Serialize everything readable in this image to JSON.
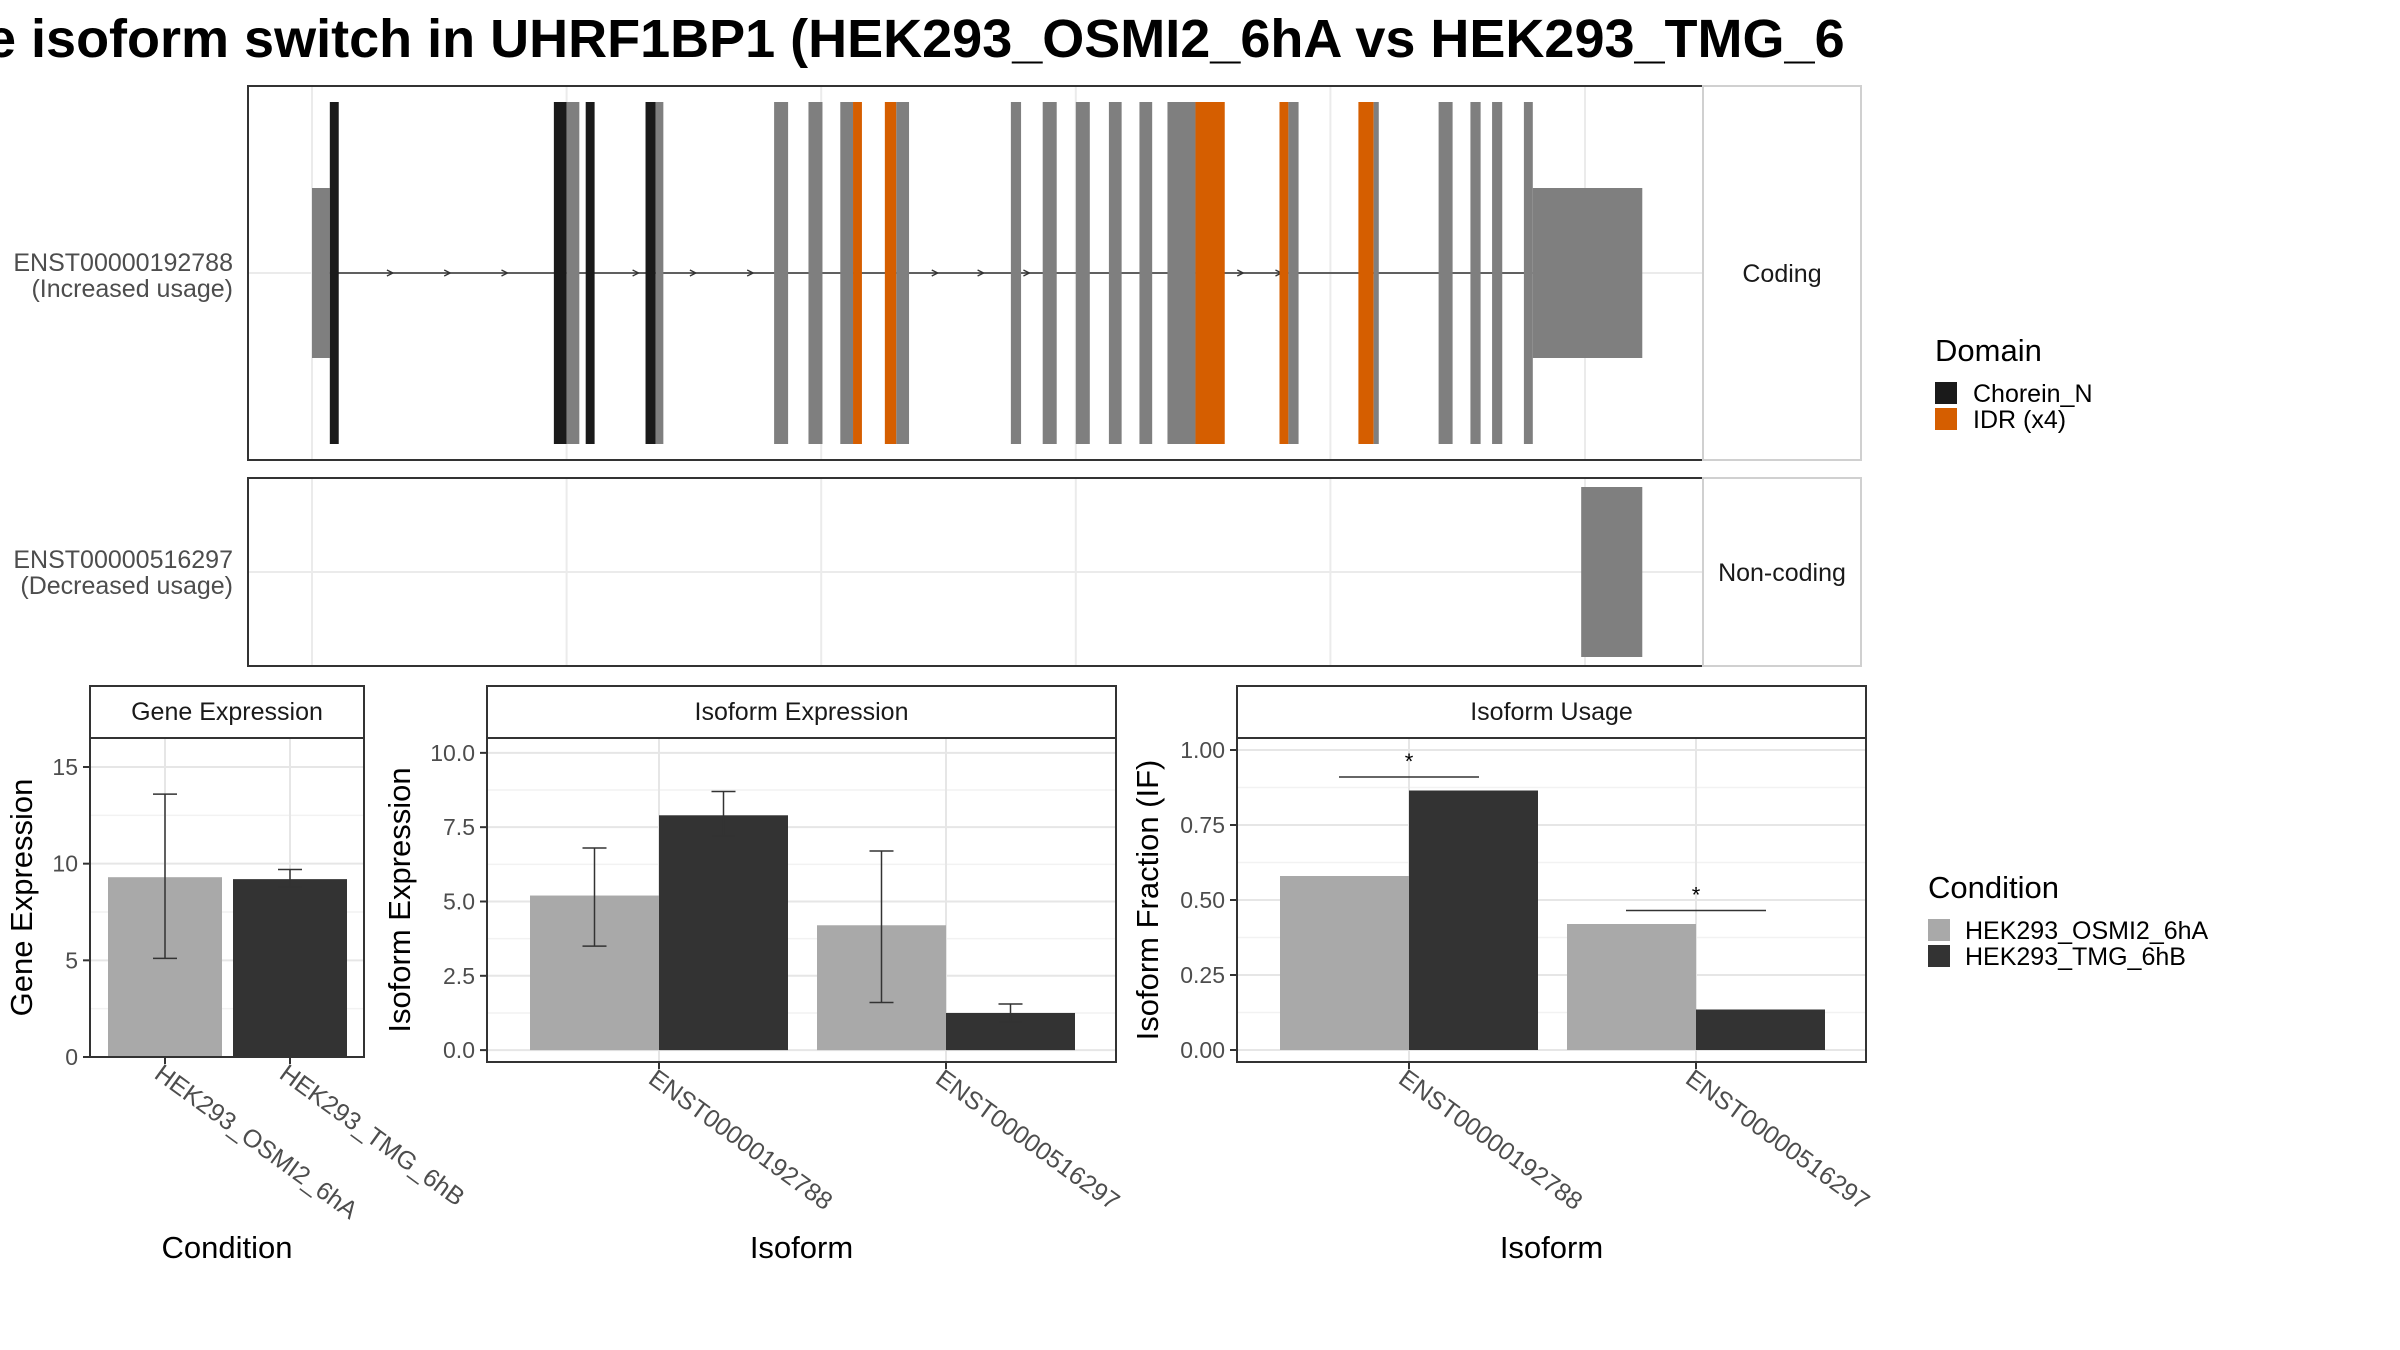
{
  "title": "e isoform switch in UHRF1BP1 (HEK293_OSMI2_6hA vs HEK293_TMG_6",
  "colors": {
    "chorein": "#1a1a1a",
    "idr": "#d55e00",
    "exon": "#7f7f7f",
    "cond_a": "#a9a9a9",
    "cond_b": "#333333"
  },
  "chart_data": [
    {
      "type": "gene-structure",
      "panels": [
        {
          "name": "ENST00000192788\n(Increased usage)",
          "label_line1": "ENST00000192788",
          "label_line2": "(Increased usage)",
          "strip": "Coding",
          "coding": true,
          "exons": [
            {
              "start": 0.0,
              "end": 0.014,
              "kind": "utr"
            },
            {
              "start": 0.014,
              "end": 0.021,
              "kind": "cds",
              "domain": "Chorein_N"
            },
            {
              "start": 0.19,
              "end": 0.2,
              "kind": "cds",
              "domain": "Chorein_N"
            },
            {
              "start": 0.2,
              "end": 0.21,
              "kind": "cds"
            },
            {
              "start": 0.215,
              "end": 0.222,
              "kind": "cds",
              "domain": "Chorein_N"
            },
            {
              "start": 0.262,
              "end": 0.27,
              "kind": "cds",
              "domain": "Chorein_N"
            },
            {
              "start": 0.27,
              "end": 0.276,
              "kind": "cds"
            },
            {
              "start": 0.363,
              "end": 0.374,
              "kind": "cds"
            },
            {
              "start": 0.39,
              "end": 0.401,
              "kind": "cds"
            },
            {
              "start": 0.415,
              "end": 0.425,
              "kind": "cds"
            },
            {
              "start": 0.425,
              "end": 0.432,
              "kind": "cds",
              "domain": "IDR"
            },
            {
              "start": 0.45,
              "end": 0.459,
              "kind": "cds",
              "domain": "IDR"
            },
            {
              "start": 0.459,
              "end": 0.469,
              "kind": "cds"
            },
            {
              "start": 0.549,
              "end": 0.557,
              "kind": "cds"
            },
            {
              "start": 0.574,
              "end": 0.585,
              "kind": "cds"
            },
            {
              "start": 0.6,
              "end": 0.611,
              "kind": "cds"
            },
            {
              "start": 0.626,
              "end": 0.636,
              "kind": "cds"
            },
            {
              "start": 0.65,
              "end": 0.66,
              "kind": "cds"
            },
            {
              "start": 0.672,
              "end": 0.694,
              "kind": "cds"
            },
            {
              "start": 0.694,
              "end": 0.717,
              "kind": "cds",
              "domain": "IDR"
            },
            {
              "start": 0.76,
              "end": 0.767,
              "kind": "cds",
              "domain": "IDR"
            },
            {
              "start": 0.767,
              "end": 0.775,
              "kind": "cds"
            },
            {
              "start": 0.822,
              "end": 0.834,
              "kind": "cds",
              "domain": "IDR"
            },
            {
              "start": 0.834,
              "end": 0.838,
              "kind": "cds"
            },
            {
              "start": 0.885,
              "end": 0.896,
              "kind": "cds"
            },
            {
              "start": 0.91,
              "end": 0.918,
              "kind": "cds"
            },
            {
              "start": 0.927,
              "end": 0.935,
              "kind": "cds"
            },
            {
              "start": 0.952,
              "end": 0.959,
              "kind": "cds"
            },
            {
              "start": 0.959,
              "end": 1.045,
              "kind": "utr"
            }
          ],
          "arrows": [
            0.062,
            0.107,
            0.152,
            0.255,
            0.3,
            0.345,
            0.49,
            0.526,
            0.562,
            0.73,
            0.76
          ]
        },
        {
          "name": "ENST00000516297\n(Decreased usage)",
          "label_line1": "ENST00000516297",
          "label_line2": "(Decreased usage)",
          "strip": "Non-coding",
          "coding": false,
          "exons": [
            {
              "start": 0.997,
              "end": 1.045,
              "kind": "noncoding"
            }
          ],
          "arrows": []
        }
      ],
      "legend": {
        "title": "Domain",
        "items": [
          {
            "label": "Chorein_N",
            "color": "#1a1a1a"
          },
          {
            "label": "IDR (x4)",
            "color": "#d55e00"
          }
        ]
      }
    },
    {
      "type": "bar",
      "strip": "Gene Expression",
      "xlabel": "Condition",
      "ylabel": "Gene Expression",
      "ylim": [
        0,
        16.5
      ],
      "yticks": [
        0,
        5,
        10,
        15
      ],
      "ytick_labels": [
        "0",
        "5",
        "10",
        "15"
      ],
      "categories": [
        "HEK293_OSMI2_6hA",
        "HEK293_TMG_6hB"
      ],
      "series": [
        {
          "name": "HEK293_OSMI2_6hA",
          "values": [
            9.3,
            null
          ],
          "err_low": [
            5.1,
            null
          ],
          "err_high": [
            13.6,
            null
          ]
        },
        {
          "name": "HEK293_TMG_6hB",
          "values": [
            null,
            9.2
          ],
          "err_low": [
            null,
            8.8
          ],
          "err_high": [
            null,
            9.7
          ]
        }
      ]
    },
    {
      "type": "bar",
      "strip": "Isoform Expression",
      "xlabel": "Isoform",
      "ylabel": "Isoform Expression",
      "ylim": [
        -0.4,
        10.5
      ],
      "yticks": [
        0,
        2.5,
        5,
        7.5,
        10
      ],
      "ytick_labels": [
        "0.0",
        "2.5",
        "5.0",
        "7.5",
        "10.0"
      ],
      "categories": [
        "ENST00000192788",
        "ENST00000516297"
      ],
      "series": [
        {
          "name": "HEK293_OSMI2_6hA",
          "values": [
            5.2,
            4.2
          ],
          "err_low": [
            3.5,
            1.6
          ],
          "err_high": [
            6.8,
            6.7
          ]
        },
        {
          "name": "HEK293_TMG_6hB",
          "values": [
            7.9,
            1.25
          ],
          "err_low": [
            7.2,
            0.95
          ],
          "err_high": [
            8.7,
            1.55
          ]
        }
      ]
    },
    {
      "type": "bar",
      "strip": "Isoform Usage",
      "xlabel": "Isoform",
      "ylabel": "Isoform Fraction (IF)",
      "ylim": [
        -0.04,
        1.04
      ],
      "yticks": [
        0,
        0.25,
        0.5,
        0.75,
        1
      ],
      "ytick_labels": [
        "0.00",
        "0.25",
        "0.50",
        "0.75",
        "1.00"
      ],
      "categories": [
        "ENST00000192788",
        "ENST00000516297"
      ],
      "series": [
        {
          "name": "HEK293_OSMI2_6hA",
          "values": [
            0.58,
            0.42
          ]
        },
        {
          "name": "HEK293_TMG_6hB",
          "values": [
            0.865,
            0.135
          ]
        }
      ],
      "significance": [
        {
          "category": "ENST00000192788",
          "label": "*",
          "y": 0.91
        },
        {
          "category": "ENST00000516297",
          "label": "*",
          "y": 0.465
        }
      ]
    }
  ],
  "condition_legend": {
    "title": "Condition",
    "items": [
      {
        "label": "HEK293_OSMI2_6hA",
        "color": "#a9a9a9"
      },
      {
        "label": "HEK293_TMG_6hB",
        "color": "#333333"
      }
    ]
  }
}
